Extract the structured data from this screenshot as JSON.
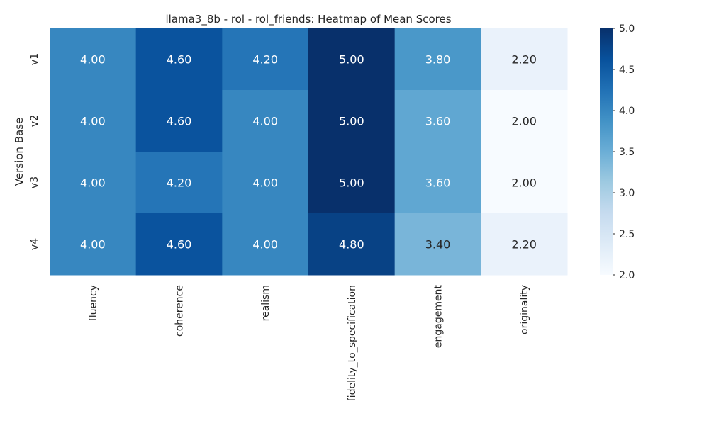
{
  "chart_data": {
    "type": "heatmap",
    "title": "llama3_8b - rol - rol_friends: Heatmap of Mean Scores",
    "xlabel": "",
    "ylabel": "Version Base",
    "x_categories": [
      "fluency",
      "coherence",
      "realism",
      "fidelity_to_specification",
      "engagement",
      "originality"
    ],
    "y_categories": [
      "v1",
      "v2",
      "v3",
      "v4"
    ],
    "values": [
      [
        4.0,
        4.6,
        4.2,
        5.0,
        3.8,
        2.2
      ],
      [
        4.0,
        4.6,
        4.0,
        5.0,
        3.6,
        2.0
      ],
      [
        4.0,
        4.2,
        4.0,
        5.0,
        3.6,
        2.0
      ],
      [
        4.0,
        4.6,
        4.0,
        4.8,
        3.4,
        2.2
      ]
    ],
    "cell_labels": [
      [
        "4.00",
        "4.60",
        "4.20",
        "5.00",
        "3.80",
        "2.20"
      ],
      [
        "4.00",
        "4.60",
        "4.00",
        "5.00",
        "3.60",
        "2.00"
      ],
      [
        "4.00",
        "4.20",
        "4.00",
        "5.00",
        "3.60",
        "2.00"
      ],
      [
        "4.00",
        "4.60",
        "4.00",
        "4.80",
        "3.40",
        "2.20"
      ]
    ],
    "colorbar": {
      "range": [
        2.0,
        5.0
      ],
      "ticks": [
        "2.0",
        "2.5",
        "3.0",
        "3.5",
        "4.0",
        "4.5",
        "5.0"
      ],
      "colormap": "Blues"
    },
    "grid": false
  }
}
